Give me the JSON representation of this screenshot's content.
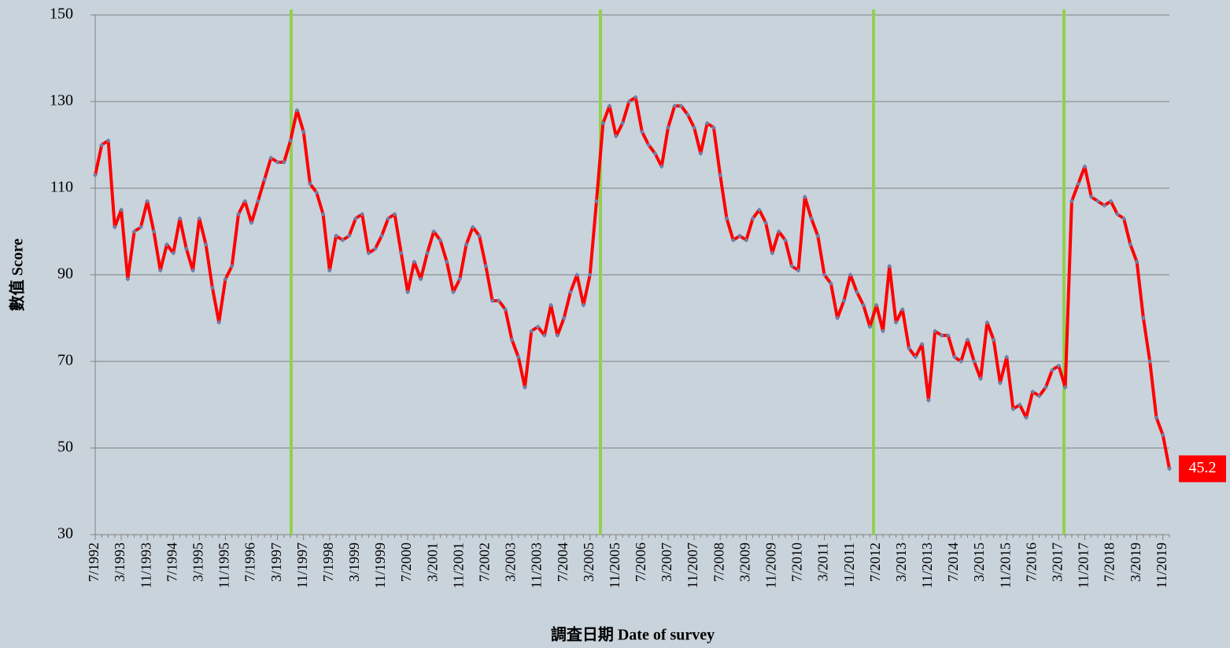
{
  "chart_data": {
    "type": "line",
    "x_label": "調査日期 Date of survey",
    "y_label": "數值 Score",
    "categories": [
      "7/1992",
      null,
      null,
      null,
      "3/1993",
      null,
      null,
      null,
      "11/1993",
      null,
      null,
      null,
      "7/1994",
      null,
      null,
      null,
      "3/1995",
      null,
      null,
      null,
      "11/1995",
      null,
      null,
      null,
      "7/1996",
      null,
      null,
      null,
      "3/1997",
      null,
      null,
      null,
      "11/1997",
      null,
      null,
      null,
      "7/1998",
      null,
      null,
      null,
      "3/1999",
      null,
      null,
      null,
      "11/1999",
      null,
      null,
      null,
      "7/2000",
      null,
      null,
      null,
      "3/2001",
      null,
      null,
      null,
      "11/2001",
      null,
      null,
      null,
      "7/2002",
      null,
      null,
      null,
      "3/2003",
      null,
      null,
      null,
      "11/2003",
      null,
      null,
      null,
      "7/2004",
      null,
      null,
      null,
      "3/2005",
      null,
      null,
      null,
      "11/2005",
      null,
      null,
      null,
      "7/2006",
      null,
      null,
      null,
      "3/2007",
      null,
      null,
      null,
      "11/2007",
      null,
      null,
      null,
      "7/2008",
      null,
      null,
      null,
      "3/2009",
      null,
      null,
      null,
      "11/2009",
      null,
      null,
      null,
      "7/2010",
      null,
      null,
      null,
      "3/2011",
      null,
      null,
      null,
      "11/2011",
      null,
      null,
      null,
      "7/2012",
      null,
      null,
      null,
      "3/2013",
      null,
      null,
      null,
      "11/2013",
      null,
      null,
      null,
      "7/2014",
      null,
      null,
      null,
      "3/2015",
      null,
      null,
      null,
      "11/2015",
      null,
      null,
      null,
      "7/2016",
      null,
      null,
      null,
      "3/2017",
      null,
      null,
      null,
      "11/2017",
      null,
      null,
      null,
      "7/2018",
      null,
      null,
      null,
      "3/2019",
      null,
      null,
      null,
      "11/2019",
      null
    ],
    "series": [
      {
        "color": "#ff0000",
        "marker_color": "#6f80a8",
        "values": [
          113,
          120,
          121,
          101,
          105,
          89,
          100,
          101,
          107,
          100,
          91,
          97,
          95,
          103,
          96,
          91,
          103,
          97,
          87,
          79,
          89,
          92,
          104,
          107,
          102,
          107,
          112,
          117,
          116,
          116,
          121,
          128,
          123,
          111,
          109,
          104,
          91,
          99,
          98,
          99,
          103,
          104,
          95,
          96,
          99,
          103,
          104,
          95,
          86,
          93,
          89,
          95,
          100,
          98,
          93,
          86,
          89,
          97,
          101,
          99,
          92,
          84,
          84,
          82,
          75,
          71,
          64,
          77,
          78,
          76,
          83,
          76,
          80,
          86,
          90,
          83,
          90,
          107,
          125,
          129,
          122,
          125,
          130,
          131,
          123,
          120,
          118,
          115,
          124,
          129,
          129,
          127,
          124,
          118,
          125,
          124,
          113,
          103,
          98,
          99,
          98,
          103,
          105,
          102,
          95,
          100,
          98,
          92,
          91,
          108,
          103,
          99,
          90,
          88,
          80,
          84,
          90,
          86,
          83,
          78,
          83,
          77,
          92,
          79,
          82,
          73,
          71,
          74,
          61,
          77,
          76,
          76,
          71,
          70,
          75,
          70,
          66,
          79,
          75,
          65,
          71,
          59,
          60,
          57,
          63,
          62,
          64,
          68,
          69,
          64,
          107,
          111,
          115,
          108,
          107,
          106,
          107,
          104,
          103,
          97,
          93,
          80,
          70,
          57,
          53,
          45.2
        ]
      }
    ],
    "ylim": [
      30,
      150
    ],
    "yticks": [
      30,
      50,
      70,
      90,
      110,
      130,
      150
    ],
    "grid": true
  }
}
